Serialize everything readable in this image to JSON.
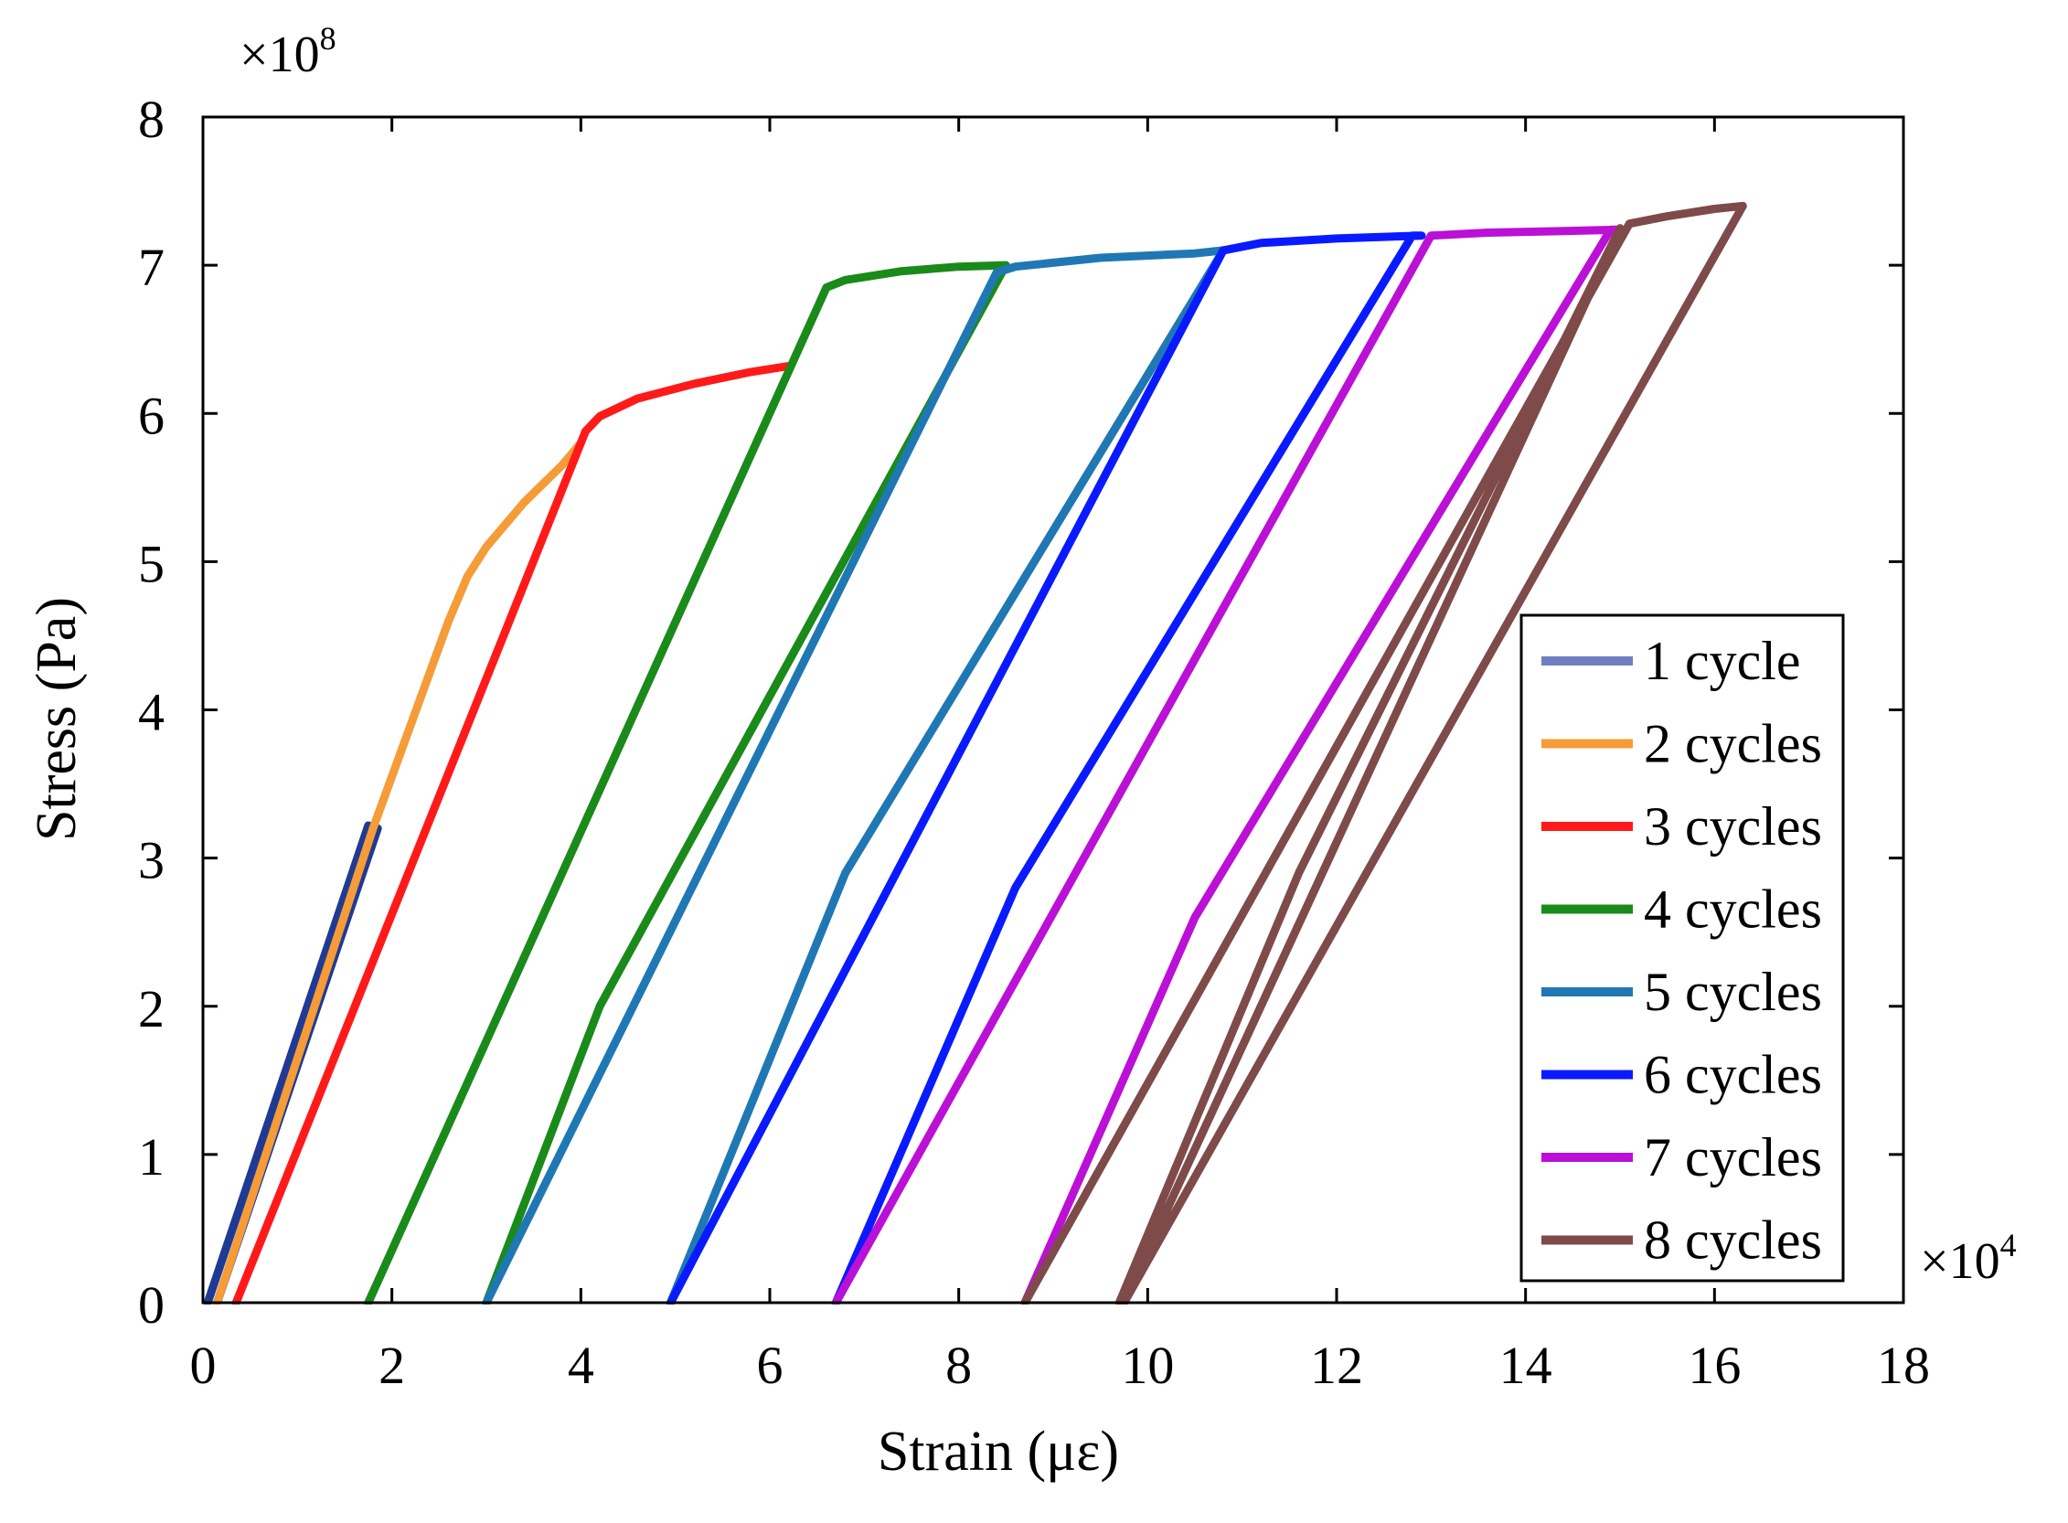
{
  "chart_data": {
    "type": "line",
    "title": "",
    "xlabel": "Strain (με)",
    "ylabel": "Stress (Pa)",
    "x_multiplier": {
      "base": "×10",
      "exp": "4"
    },
    "y_multiplier": {
      "base": "×10",
      "exp": "8"
    },
    "xlim": [
      0,
      18
    ],
    "ylim": [
      0,
      8
    ],
    "xticks": [
      "0",
      "2",
      "4",
      "6",
      "8",
      "10",
      "12",
      "14",
      "16",
      "18"
    ],
    "yticks": [
      "0",
      "1",
      "2",
      "3",
      "4",
      "5",
      "6",
      "7",
      "8"
    ],
    "grid": false,
    "legend_position": "bottom-right",
    "series": [
      {
        "name": "1 cycle",
        "color": "#1f3a93",
        "legend_color": "#6f7fbf",
        "x": [
          0.05,
          1.75,
          1.85,
          0.15
        ],
        "y": [
          0.0,
          3.22,
          3.2,
          0.0
        ]
      },
      {
        "name": "2 cycles",
        "color": "#f59b38",
        "x": [
          0.15,
          1.8,
          2.6,
          2.8,
          3.0,
          3.4,
          3.8,
          4.0
        ],
        "y": [
          0.0,
          3.2,
          4.6,
          4.9,
          5.1,
          5.4,
          5.65,
          5.8
        ]
      },
      {
        "name": "3 cycles",
        "color": "#ff1a1a",
        "x": [
          0.35,
          4.05,
          4.2,
          4.6,
          5.2,
          5.8,
          6.2
        ],
        "y": [
          0.0,
          5.88,
          5.98,
          6.1,
          6.2,
          6.28,
          6.32
        ]
      },
      {
        "name": "4 cycles",
        "color": "#1a8a1a",
        "x": [
          1.75,
          6.6,
          6.8,
          7.4,
          8.0,
          8.5,
          4.2,
          3.0
        ],
        "y": [
          0.0,
          6.85,
          6.9,
          6.96,
          6.99,
          7.0,
          2.0,
          0.0
        ]
      },
      {
        "name": "5 cycles",
        "color": "#1f78b4",
        "x": [
          3.0,
          8.4,
          8.6,
          9.5,
          10.5,
          10.8,
          6.8,
          4.95
        ],
        "y": [
          0.0,
          6.95,
          6.99,
          7.05,
          7.08,
          7.1,
          2.9,
          0.0
        ]
      },
      {
        "name": "6 cycles",
        "color": "#0a1aff",
        "x": [
          4.95,
          10.8,
          11.2,
          12.0,
          12.9,
          12.8,
          8.6,
          6.7
        ],
        "y": [
          0.0,
          7.1,
          7.15,
          7.18,
          7.2,
          7.2,
          2.8,
          0.0
        ]
      },
      {
        "name": "7 cycles",
        "color": "#bb10d6",
        "x": [
          6.7,
          13.0,
          13.6,
          14.4,
          15.0,
          14.9,
          10.5,
          8.7
        ],
        "y": [
          0.0,
          7.2,
          7.22,
          7.23,
          7.24,
          7.24,
          2.6,
          0.0
        ]
      },
      {
        "name": "8 cycles",
        "color": "#7f4a4a",
        "x": [
          8.7,
          15.1,
          15.5,
          16.0,
          16.3,
          9.75,
          15.0,
          11.6,
          9.7
        ],
        "y": [
          0.0,
          7.28,
          7.33,
          7.38,
          7.4,
          0.0,
          7.25,
          2.9,
          0.0
        ]
      }
    ]
  }
}
